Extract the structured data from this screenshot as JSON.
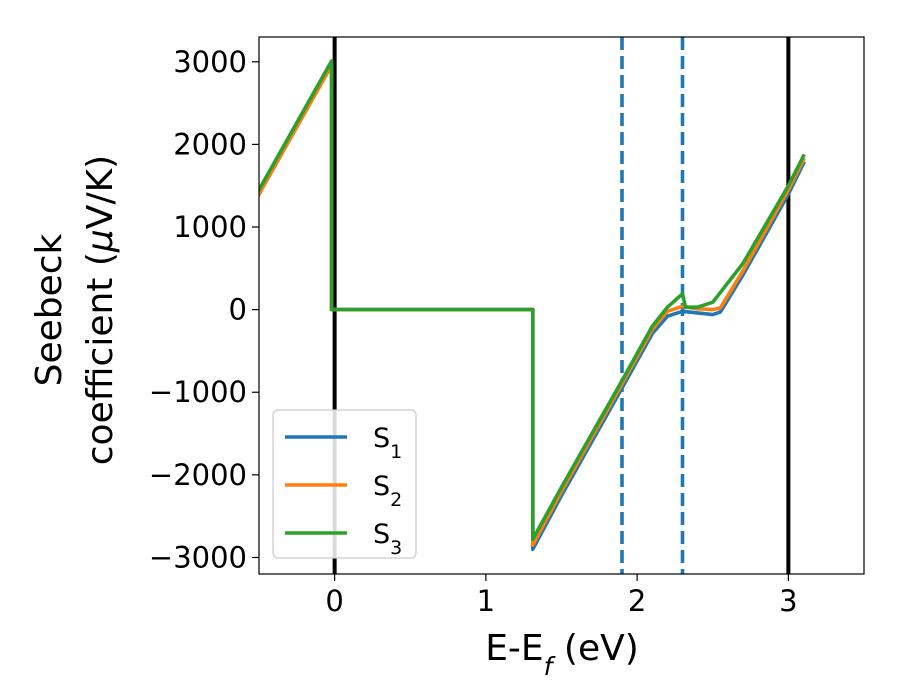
{
  "chart_data": {
    "type": "line",
    "title": "",
    "xlabel": {
      "main": "E-E",
      "sub": "f",
      "suffix": " (eV)"
    },
    "ylabel": {
      "line1": "Seebeck",
      "line2_prefix": "coefficient  (",
      "mu": "μ",
      "line2_suffix": "V/K)"
    },
    "xlim": [
      -0.5,
      3.5
    ],
    "ylim": [
      -3200,
      3300
    ],
    "x_ticks": [
      0,
      1,
      2,
      3
    ],
    "x_tick_labels": [
      "0",
      "1",
      "2",
      "3"
    ],
    "y_ticks": [
      3000,
      2000,
      1000,
      0,
      -1000,
      -2000,
      -3000
    ],
    "y_tick_labels": [
      "3000",
      "2000",
      "1000",
      "0",
      "−1000",
      "−2000",
      "−3000"
    ],
    "grid": false,
    "legend_position": "lower-left",
    "vertical_lines": [
      {
        "x": 0.0,
        "style": "solid",
        "color": "#000000"
      },
      {
        "x": 3.0,
        "style": "solid",
        "color": "#000000"
      },
      {
        "x": 1.9,
        "style": "dashed",
        "color": "#1f77b4"
      },
      {
        "x": 2.3,
        "style": "dashed",
        "color": "#1f77b4"
      }
    ],
    "series": [
      {
        "name": "S",
        "subscript": "1",
        "color": "#1f77b4",
        "x": [
          -0.5,
          -0.02,
          -0.02,
          1.31,
          1.31,
          1.5,
          1.9,
          2.1,
          2.2,
          2.3,
          2.4,
          2.5,
          2.55,
          2.7,
          3.0,
          3.1
        ],
        "y": [
          1400,
          2960,
          0,
          0,
          -2900,
          -2250,
          -950,
          -290,
          -80,
          -20,
          -40,
          -60,
          -30,
          420,
          1400,
          1770
        ]
      },
      {
        "name": "S",
        "subscript": "2",
        "color": "#ff7f0e",
        "x": [
          -0.5,
          -0.02,
          -0.02,
          1.31,
          1.31,
          1.5,
          1.9,
          2.1,
          2.2,
          2.3,
          2.4,
          2.5,
          2.55,
          2.7,
          3.0,
          3.1
        ],
        "y": [
          1400,
          2960,
          0,
          0,
          -2850,
          -2200,
          -900,
          -240,
          -20,
          40,
          10,
          0,
          20,
          470,
          1450,
          1810
        ]
      },
      {
        "name": "S",
        "subscript": "3",
        "color": "#2ca02c",
        "x": [
          -0.5,
          -0.02,
          -0.02,
          1.31,
          1.31,
          1.5,
          1.9,
          2.1,
          2.2,
          2.3,
          2.32,
          2.4,
          2.5,
          2.7,
          3.0,
          3.1
        ],
        "y": [
          1450,
          3010,
          0,
          0,
          -2780,
          -2150,
          -860,
          -200,
          30,
          190,
          30,
          30,
          90,
          560,
          1500,
          1860
        ]
      }
    ]
  }
}
